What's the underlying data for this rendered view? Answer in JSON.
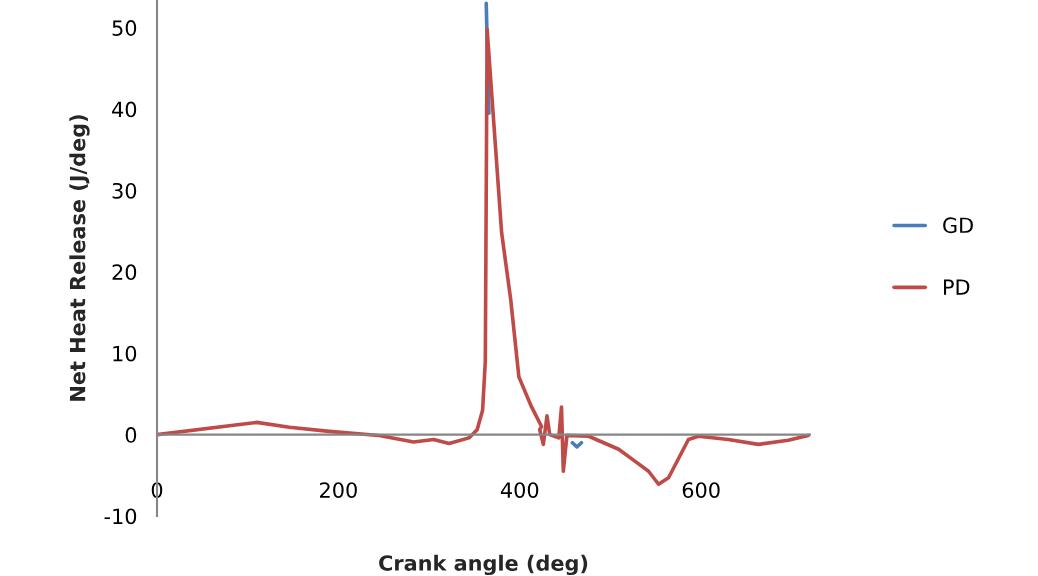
{
  "chart_data": {
    "type": "line",
    "xlabel": "Crank angle (deg)",
    "ylabel": "Net Heat Release (J/deg)",
    "xlim": [
      0,
      720
    ],
    "xticks": [
      0,
      200,
      400,
      600
    ],
    "ylim": [
      -10,
      53.4
    ],
    "yticks": [
      -10,
      0,
      10,
      20,
      30,
      40,
      50
    ],
    "grid": false,
    "legend": "right",
    "marker": "none",
    "line_style": "solid",
    "series": [
      {
        "name": "GD",
        "color": "#4a7ebb",
        "x": [
          363,
          366,
          null,
          458,
          463,
          468
        ],
        "values": [
          53,
          39.5,
          null,
          -1.0,
          -1.5,
          -1.0
        ]
      },
      {
        "name": "PD",
        "color": "#be4b48",
        "x": [
          0,
          110,
          146,
          190,
          245,
          283,
          305,
          322,
          344,
          353,
          359,
          362,
          364,
          380,
          390,
          399,
          413,
          424,
          422,
          426,
          430,
          433,
          443,
          446,
          448,
          452,
          476,
          509,
          525,
          542,
          553,
          564,
          586,
          597,
          630,
          663,
          696,
          718
        ],
        "values": [
          0,
          1.5,
          0.9,
          0.4,
          -0.1,
          -0.9,
          -0.6,
          -1.1,
          -0.4,
          0.6,
          3,
          9,
          49.8,
          24.8,
          16.6,
          7.1,
          3.4,
          1.0,
          0.6,
          -1.2,
          2.3,
          0,
          -0.4,
          3.4,
          -4.5,
          -0.1,
          -0.2,
          -1.8,
          -3.1,
          -4.5,
          -6.1,
          -5.3,
          -0.6,
          -0.2,
          -0.6,
          -1.2,
          -0.7,
          -0.1
        ]
      }
    ]
  }
}
